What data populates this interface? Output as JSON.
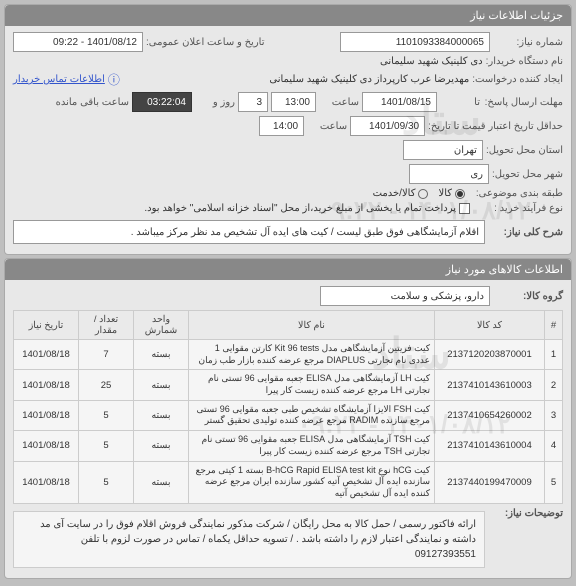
{
  "panel1": {
    "title": "جزئیات اطلاعات نیاز",
    "request_no_label": "شماره نیاز:",
    "request_no": "1101093384000065",
    "announce_label": "تاریخ و ساعت اعلان عمومی:",
    "announce": "1401/08/12 - 09:22",
    "buyer_label": "نام دستگاه خریدار:",
    "buyer": "دی کلینیک شهید سلیمانی",
    "creator_label": "ایجاد کننده درخواست:",
    "creator": "مهدیرضا عرب کارپرداز دی کلینیک شهید سلیمانی",
    "info_link": "اطلاعات تماس خریدار",
    "deadline_label": "مهلت ارسال پاسخ:",
    "deadline_date": "1401/08/15",
    "time_label": "ساعت",
    "deadline_time": "13:00",
    "days_label": "روز و",
    "days": "3",
    "remain_label": "ساعت باقی مانده",
    "remain": "03:22:04",
    "min_valid_label": "حداقل تاریخ اعتبار قیمت تا تاریخ:",
    "min_valid_date": "1401/09/30",
    "min_valid_time": "14:00",
    "province_label": "استان محل تحویل:",
    "province": "تهران",
    "city_label": "شهر محل تحویل:",
    "city": "ری",
    "class_label": "طبقه بندی موضوعی:",
    "class_goods": "کالا",
    "class_service": "کالا/خدمت",
    "buy_type_label": "نوع فرآیند خرید :",
    "buy_type_note": "پرداخت تمام یا بخشی از مبلغ خرید،از محل \"اسناد خزانه اسلامی\" خواهد بود.",
    "desc_label": "شرح کلی نیاز:",
    "desc": "اقلام آزمایشگاهی فوق طبق لیست /  کیت های ایده آل تشخیص مد نظر مرکز میباشد ."
  },
  "panel2": {
    "title": "اطلاعات کالاهای مورد نیاز",
    "group_label": "گروه کالا:",
    "group": "دارو، پزشکی و سلامت",
    "headers": [
      "#",
      "کد کالا",
      "نام کالا",
      "واحد شمارش",
      "تعداد / مقدار",
      "تاریخ نیاز"
    ],
    "rows": [
      {
        "n": "1",
        "code": "2137120203870001",
        "name": "کیت فریتین آزمایشگاهی مدل Kit 96 tests کارتن مقوایی 1 عددی نام تجارتی DIAPLUS مرجع عرضه کننده بازار طب زمان",
        "unit": "بسته",
        "qty": "7",
        "date": "1401/08/18"
      },
      {
        "n": "2",
        "code": "2137410143610003",
        "name": "کیت LH آزمایشگاهی مدل ELISA جعبه مقوایی 96 تستی نام تجارتی LH مرجع عرضه کننده زیست کار پیرا",
        "unit": "بسته",
        "qty": "25",
        "date": "1401/08/18"
      },
      {
        "n": "3",
        "code": "2137410654260002",
        "name": "کیت FSH الایزا آزمایشگاه تشخیص طبی جعبه مقوایی 96 تستی مرجع سازنده RADIM مرجع عرضه کننده تولیدی تحقیق گستر",
        "unit": "بسته",
        "qty": "5",
        "date": "1401/08/18"
      },
      {
        "n": "4",
        "code": "2137410143610004",
        "name": "کیت TSH آزمایشگاهی مدل ELISA جعبه مقوایی 96 تستی نام تجارتی TSH مرجع عرضه کننده زیست کار پیرا",
        "unit": "بسته",
        "qty": "5",
        "date": "1401/08/18"
      },
      {
        "n": "5",
        "code": "2137440199470009",
        "name": "کیت hCG نوع B-hCG Rapid ELISA test kit بسته 1 کیتی مرجع سازنده ایده آل تشخیص آتیه کشور سازنده ایران مرجع عرضه کننده ایده آل تشخیص آتیه",
        "unit": "بسته",
        "qty": "5",
        "date": "1401/08/18"
      }
    ],
    "notes_label": "توضیحات نیاز:",
    "notes": "ارائه فاکتور رسمی / حمل کالا به محل رایگان / شرکت مذکور نمایندگی فروش اقلام فوق را در سایت آی مد داشته و نمایندگی اعتبار لازم را داشته باشد . / تسویه حداقل یکماه / تماس در صورت لزوم با تلفن 09127393551"
  }
}
